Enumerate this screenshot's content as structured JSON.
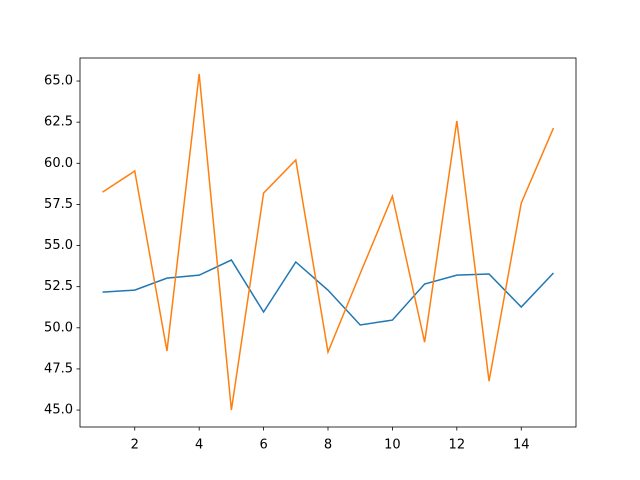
{
  "chart_data": {
    "type": "line",
    "x": [
      1,
      2,
      3,
      4,
      5,
      6,
      7,
      8,
      9,
      10,
      11,
      12,
      13,
      14,
      15
    ],
    "series": [
      {
        "color": "#1f77b4",
        "values": [
          52.17,
          52.29,
          53.02,
          53.2,
          54.12,
          50.96,
          54.0,
          52.29,
          50.17,
          50.47,
          52.66,
          53.2,
          53.27,
          51.26,
          53.33
        ]
      },
      {
        "color": "#ff7f0e",
        "values": [
          58.25,
          59.53,
          48.59,
          65.43,
          45.0,
          58.19,
          60.2,
          48.53,
          53.3,
          58.0,
          49.13,
          62.57,
          46.76,
          57.58,
          62.14
        ]
      }
    ],
    "xlim": [
      0.3,
      15.7
    ],
    "ylim": [
      43.97,
      66.4
    ],
    "xticks": [
      2,
      4,
      6,
      8,
      10,
      12,
      14
    ],
    "yticks": [
      {
        "value": 45,
        "label": "45.0"
      },
      {
        "value": 47.5,
        "label": "47.5"
      },
      {
        "value": 50,
        "label": "50.0"
      },
      {
        "value": 52.5,
        "label": "52.5"
      },
      {
        "value": 55,
        "label": "55.0"
      },
      {
        "value": 57.5,
        "label": "57.5"
      },
      {
        "value": 60,
        "label": "60.0"
      },
      {
        "value": 62.5,
        "label": "62.5"
      },
      {
        "value": 65,
        "label": "65.0"
      }
    ]
  }
}
